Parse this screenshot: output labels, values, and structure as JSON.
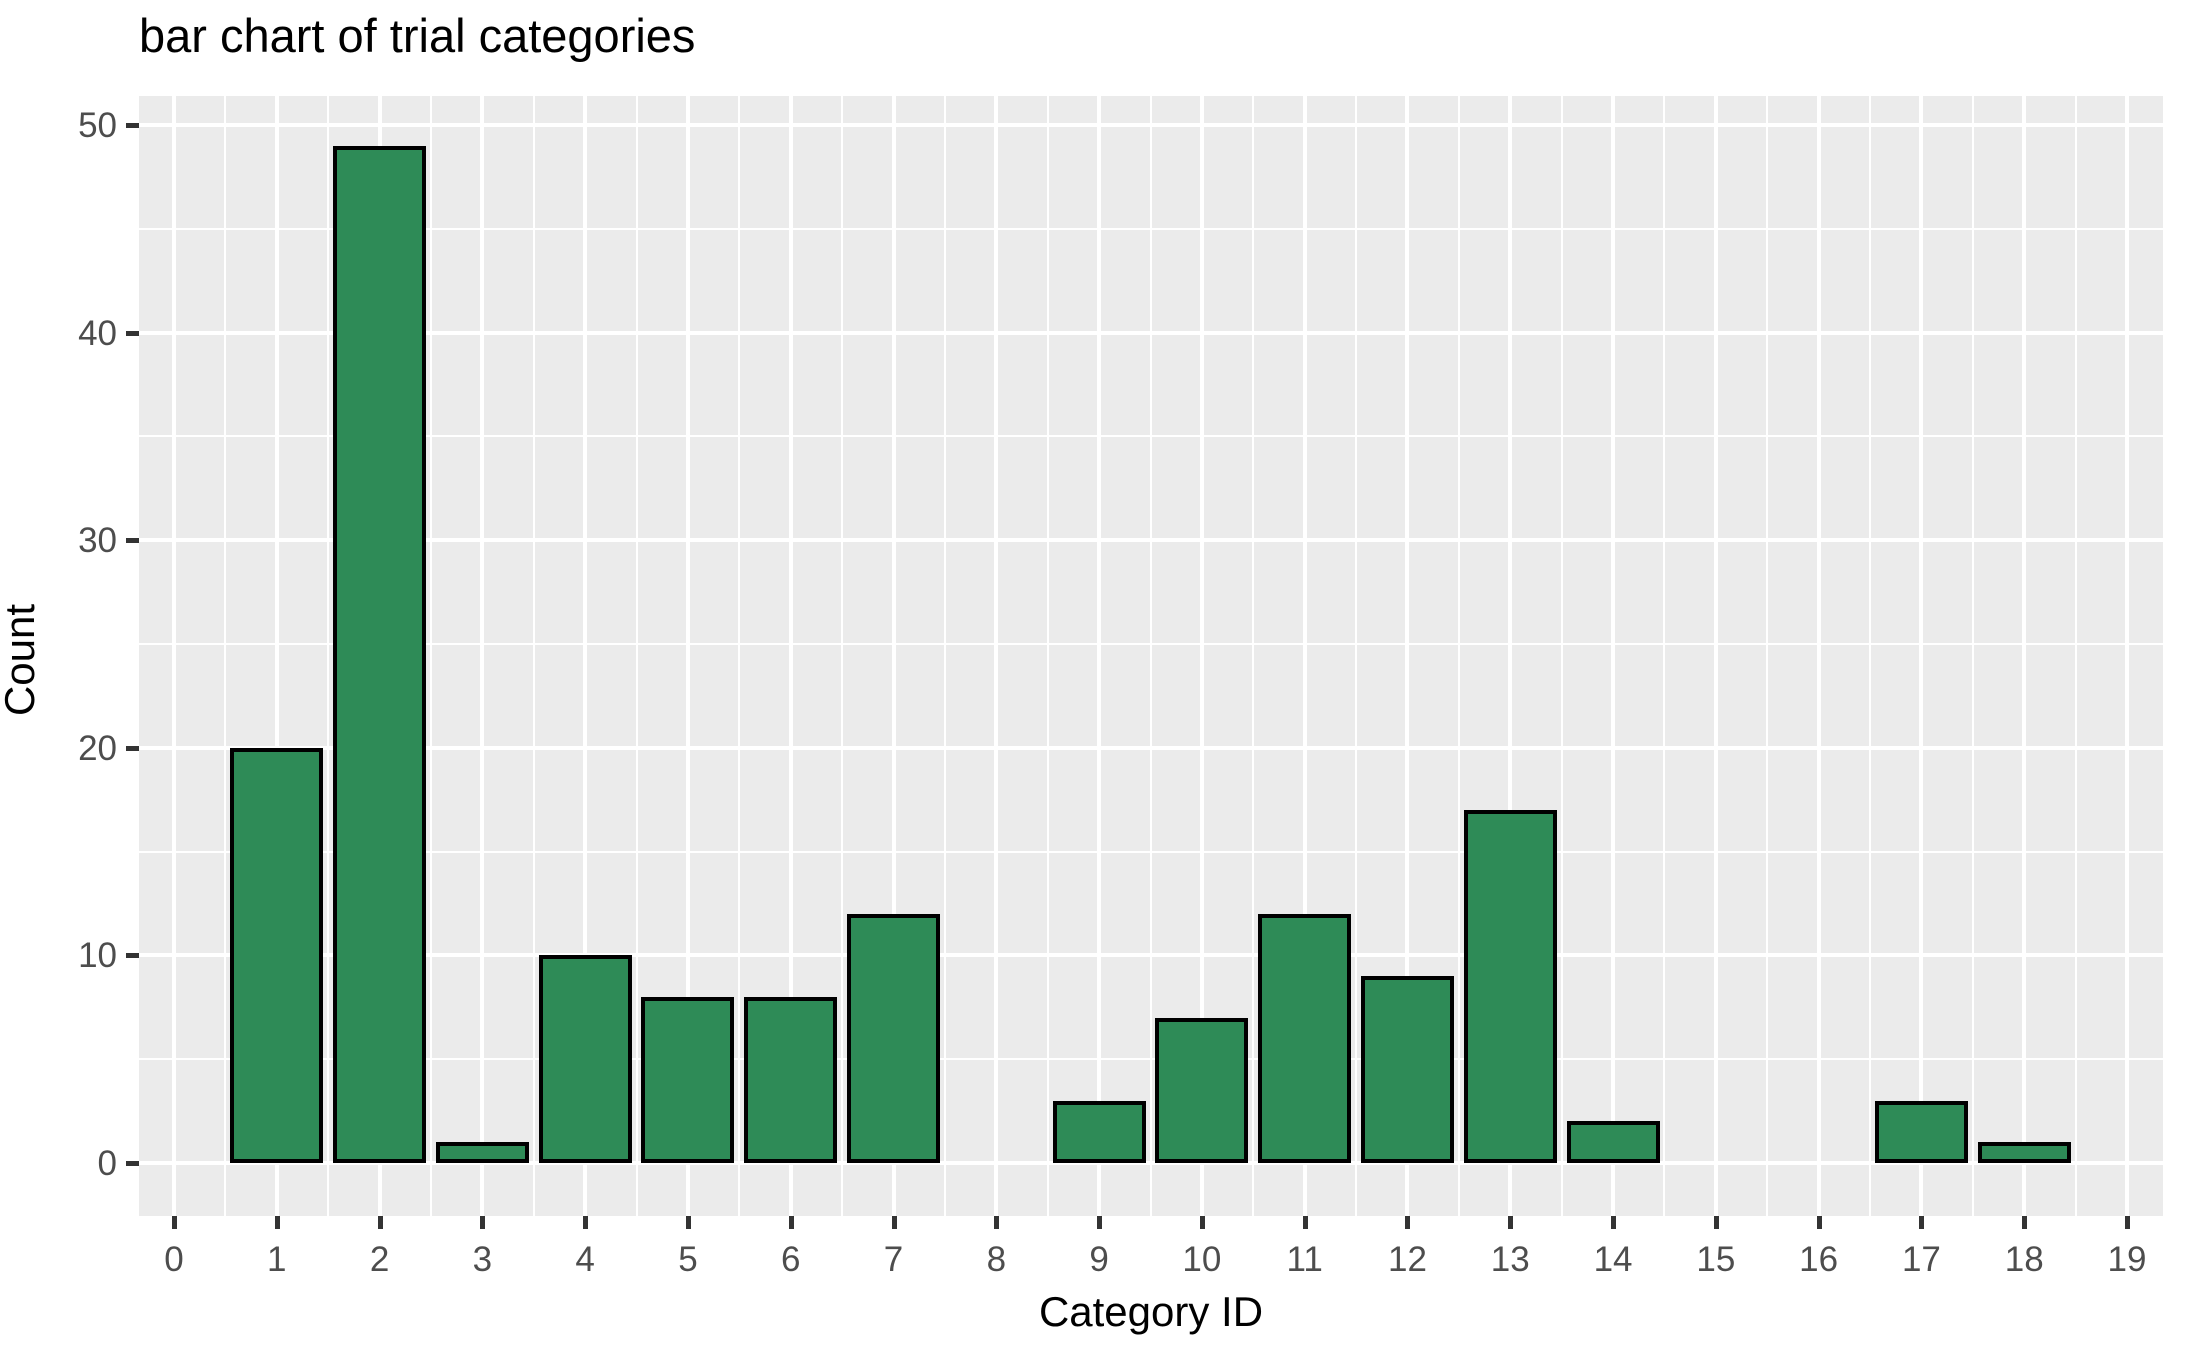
{
  "title": "bar chart of trial categories",
  "chart_data": {
    "type": "bar",
    "title": "bar chart of trial categories",
    "xlabel": "Category ID",
    "ylabel": "Count",
    "categories": [
      0,
      1,
      2,
      3,
      4,
      5,
      6,
      7,
      8,
      9,
      10,
      11,
      12,
      13,
      14,
      15,
      16,
      17,
      18,
      19
    ],
    "values": [
      0,
      20,
      49,
      1,
      10,
      8,
      8,
      12,
      0,
      3,
      7,
      12,
      9,
      17,
      2,
      0,
      0,
      3,
      1,
      0
    ],
    "x_tick_labels": [
      "0",
      "1",
      "2",
      "3",
      "4",
      "5",
      "6",
      "7",
      "8",
      "9",
      "10",
      "11",
      "12",
      "13",
      "14",
      "15",
      "16",
      "17",
      "18",
      "19"
    ],
    "y_tick_labels": [
      "0",
      "10",
      "20",
      "30",
      "40",
      "50"
    ],
    "y_tick_values": [
      0,
      10,
      20,
      30,
      40,
      50
    ],
    "y_minor_values": [
      5,
      15,
      25,
      35,
      45
    ],
    "xlim": [
      -0.35,
      19.35
    ],
    "ylim": [
      -2.55,
      51.45
    ],
    "grid": "major-and-minor",
    "legend_position": "none",
    "bar_width_fraction": 0.9,
    "colors": {
      "bar_fill": "#2E8B57",
      "bar_outline": "#000000",
      "panel_background": "#EBEBEB",
      "gridline": "#FFFFFF",
      "tick_mark": "#333333",
      "tick_label": "#4D4D4D",
      "title_text": "#000000",
      "axis_title_text": "#000000",
      "figure_background": "#FFFFFF"
    }
  }
}
